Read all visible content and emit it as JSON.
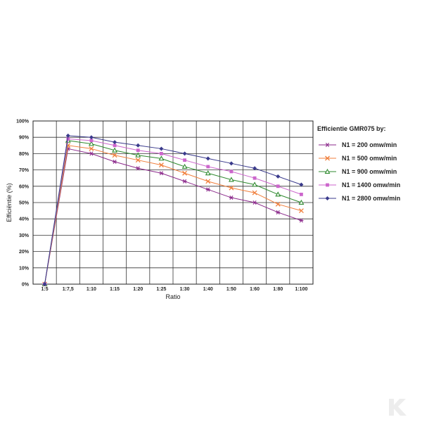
{
  "chart_data": {
    "type": "line",
    "categories": [
      "1:5",
      "1:7,5",
      "1:10",
      "1:15",
      "1:20",
      "1:25",
      "1:30",
      "1:40",
      "1:50",
      "1:60",
      "1:80",
      "1:100"
    ],
    "xlabel": "Ratio",
    "ylabel": "Efficiëntie (%)",
    "ylim": [
      0,
      100
    ],
    "yticks": [
      "0%",
      "10%",
      "20%",
      "30%",
      "40%",
      "50%",
      "60%",
      "70%",
      "80%",
      "90%",
      "100%"
    ],
    "grid": true,
    "legend_title": "Efficientie GMR075 by:",
    "legend_position": "right",
    "series": [
      {
        "name": "N1 = 200 omw/min",
        "color": "#8b2a8b",
        "marker": "asterisk",
        "values": [
          0,
          83,
          80,
          75,
          71,
          68,
          63,
          58,
          53,
          50,
          44,
          39
        ]
      },
      {
        "name": "N1 = 500 omw/min",
        "color": "#f07f3c",
        "marker": "x",
        "values": [
          0,
          85,
          83,
          79,
          76,
          73,
          68,
          63,
          59,
          56,
          49,
          45
        ]
      },
      {
        "name": "N1 = 900 omw/min",
        "color": "#2f8a2f",
        "marker": "triangle",
        "values": [
          0,
          88,
          86,
          82,
          79,
          77,
          72,
          68,
          64,
          61,
          55,
          50
        ]
      },
      {
        "name": "N1 = 1400 omw/min",
        "color": "#cc66cc",
        "marker": "square",
        "values": [
          0,
          89,
          88,
          85,
          82,
          80,
          76,
          72,
          69,
          65,
          60,
          55
        ]
      },
      {
        "name": "N1 = 2800 omw/min",
        "color": "#3a3a8c",
        "marker": "diamond",
        "values": [
          0,
          91,
          90,
          87,
          85,
          83,
          80,
          77,
          74,
          71,
          66,
          61
        ]
      }
    ]
  }
}
